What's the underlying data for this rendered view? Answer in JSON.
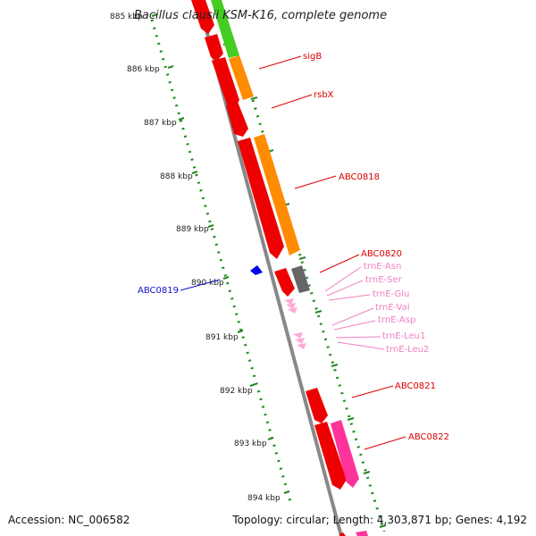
{
  "title": "Bacillus clausii KSM-K16, complete genome",
  "footer": {
    "accession": "Accession: NC_006582",
    "summary": "Topology: circular; Length: 4,303,871 bp; Genes: 4,192"
  },
  "ruler": {
    "ticks": [
      {
        "label": "885 kbp"
      },
      {
        "label": "886 kbp"
      },
      {
        "label": "887 kbp"
      },
      {
        "label": "888 kbp"
      },
      {
        "label": "889 kbp"
      },
      {
        "label": "890 kbp"
      },
      {
        "label": "891 kbp"
      },
      {
        "label": "892 kbp"
      },
      {
        "label": "893 kbp"
      },
      {
        "label": "894 kbp"
      }
    ]
  },
  "gene_labels": [
    {
      "text": "sigB",
      "color": "#dd0000"
    },
    {
      "text": "rsbX",
      "color": "#dd0000"
    },
    {
      "text": "ABC0818",
      "color": "#dd0000"
    },
    {
      "text": "ABC0820",
      "color": "#dd0000"
    },
    {
      "text": "trnE-Asn",
      "color": "#f080c0"
    },
    {
      "text": "trnE-Ser",
      "color": "#f080c0"
    },
    {
      "text": "trnE-Glu",
      "color": "#f080c0"
    },
    {
      "text": "trnE-Val",
      "color": "#f080c0"
    },
    {
      "text": "trnE-Asp",
      "color": "#f080c0"
    },
    {
      "text": "trnE-Leu1",
      "color": "#f080c0"
    },
    {
      "text": "trnE-Leu2",
      "color": "#f080c0"
    },
    {
      "text": "ABC0821",
      "color": "#dd0000"
    },
    {
      "text": "ABC0822",
      "color": "#dd0000"
    },
    {
      "text": "ABC0819",
      "color": "#1010cc"
    }
  ],
  "colors": {
    "cds": "#ee0000",
    "orange": "#ff8c00",
    "green": "#44cc22",
    "grey": "#666666",
    "pink": "#ff3399",
    "trna": "#ffaad5",
    "blue": "#0000ee",
    "axis": "#888888",
    "ruler": "#228822"
  }
}
